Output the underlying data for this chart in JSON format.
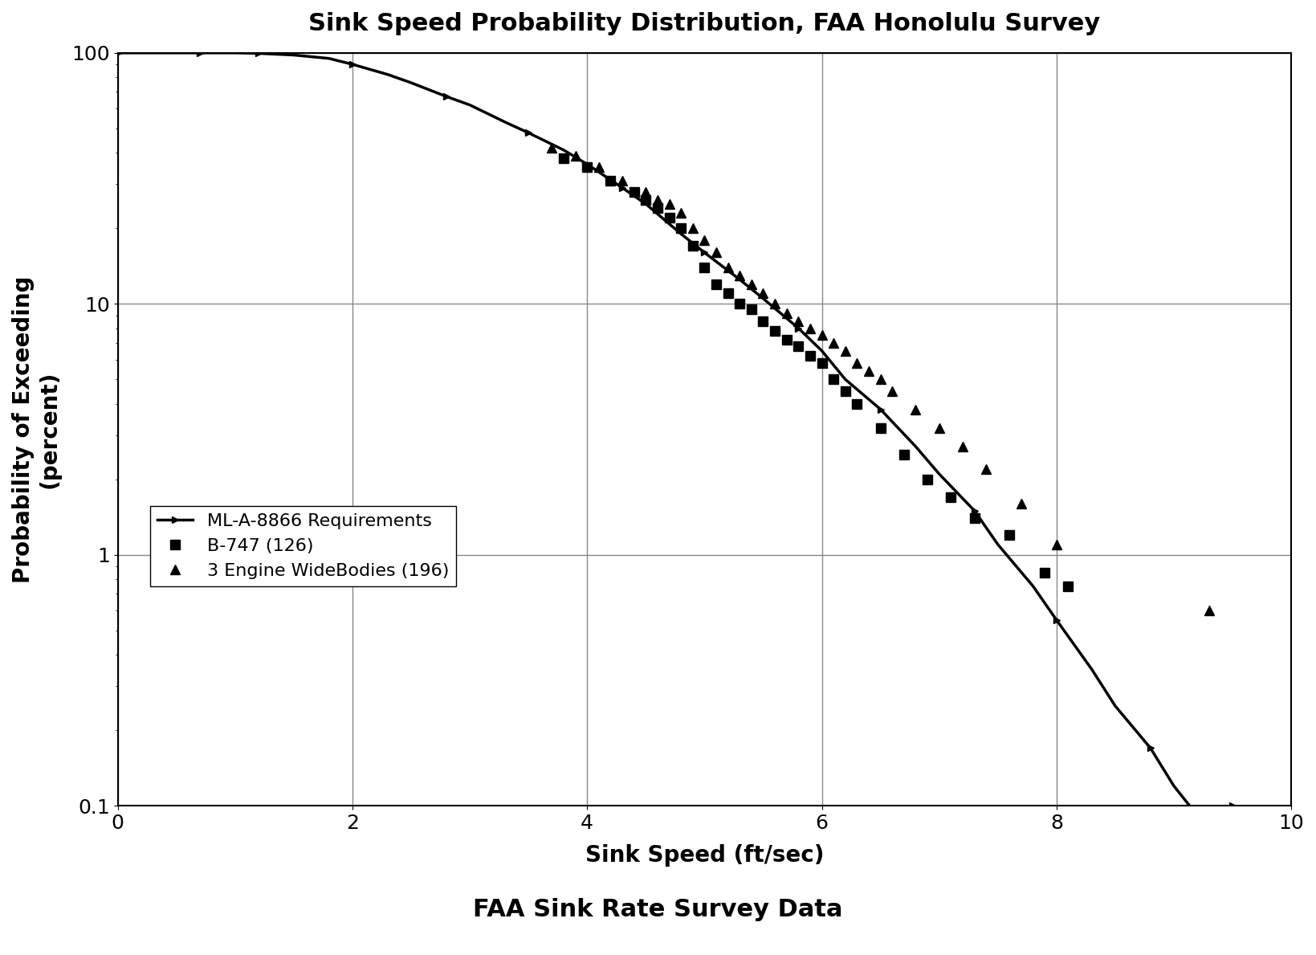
{
  "title": "Sink Speed Probability Distribution, FAA Honolulu Survey",
  "subtitle": "FAA Sink Rate Survey Data",
  "xlabel": "Sink Speed (ft/sec)",
  "ylabel": "Probability of Exceeding\n(percent)",
  "xlim": [
    0,
    10
  ],
  "ylim_log": [
    0.1,
    100
  ],
  "xticks": [
    0,
    2,
    4,
    6,
    8,
    10
  ],
  "background_color": "#ffffff",
  "ml_a_8866_x": [
    0.0,
    0.3,
    0.5,
    0.7,
    0.9,
    1.0,
    1.2,
    1.5,
    1.8,
    2.0,
    2.3,
    2.5,
    2.8,
    3.0,
    3.3,
    3.5,
    3.8,
    4.0,
    4.3,
    4.5,
    4.8,
    5.0,
    5.3,
    5.5,
    5.8,
    6.0,
    6.2,
    6.5,
    6.8,
    7.0,
    7.3,
    7.5,
    7.8,
    8.0,
    8.3,
    8.5,
    8.8,
    9.0,
    9.3,
    9.5
  ],
  "ml_a_8866_y": [
    100,
    100,
    100,
    100,
    100,
    100,
    99.5,
    98,
    95,
    90,
    82,
    76,
    67,
    62,
    53,
    48,
    41,
    36,
    29,
    25,
    19,
    16,
    12.5,
    10.5,
    8.0,
    6.5,
    5.0,
    3.8,
    2.7,
    2.1,
    1.5,
    1.1,
    0.75,
    0.55,
    0.35,
    0.25,
    0.17,
    0.12,
    0.08,
    0.1
  ],
  "b747_x": [
    3.8,
    4.0,
    4.2,
    4.4,
    4.5,
    4.6,
    4.7,
    4.8,
    4.9,
    5.0,
    5.1,
    5.2,
    5.3,
    5.4,
    5.5,
    5.6,
    5.7,
    5.8,
    5.9,
    6.0,
    6.1,
    6.2,
    6.3,
    6.5,
    6.7,
    6.9,
    7.1,
    7.3,
    7.6,
    7.9,
    8.1
  ],
  "b747_y": [
    38,
    35,
    31,
    28,
    26,
    24,
    22,
    20,
    17,
    14,
    12,
    11,
    10,
    9.5,
    8.5,
    7.8,
    7.2,
    6.8,
    6.2,
    5.8,
    5.0,
    4.5,
    4.0,
    3.2,
    2.5,
    2.0,
    1.7,
    1.4,
    1.2,
    0.85,
    0.75
  ],
  "widebody_x": [
    3.7,
    3.9,
    4.1,
    4.3,
    4.5,
    4.6,
    4.7,
    4.8,
    4.9,
    5.0,
    5.1,
    5.2,
    5.3,
    5.4,
    5.5,
    5.6,
    5.7,
    5.8,
    5.9,
    6.0,
    6.1,
    6.2,
    6.3,
    6.4,
    6.5,
    6.6,
    6.8,
    7.0,
    7.2,
    7.4,
    7.7,
    8.0,
    9.3
  ],
  "widebody_y": [
    42,
    39,
    35,
    31,
    28,
    26,
    25,
    23,
    20,
    18,
    16,
    14,
    13,
    12,
    11,
    10,
    9.2,
    8.5,
    8.0,
    7.5,
    7.0,
    6.5,
    5.8,
    5.4,
    5.0,
    4.5,
    3.8,
    3.2,
    2.7,
    2.2,
    1.6,
    1.1,
    0.6
  ],
  "ml_line_color": "#000000",
  "b747_color": "#000000",
  "widebody_color": "#000000",
  "legend_ml": "ML-A-8866 Requirements",
  "legend_b747": "B-747 (126)",
  "legend_widebody": "3 Engine WideBodies (196)"
}
